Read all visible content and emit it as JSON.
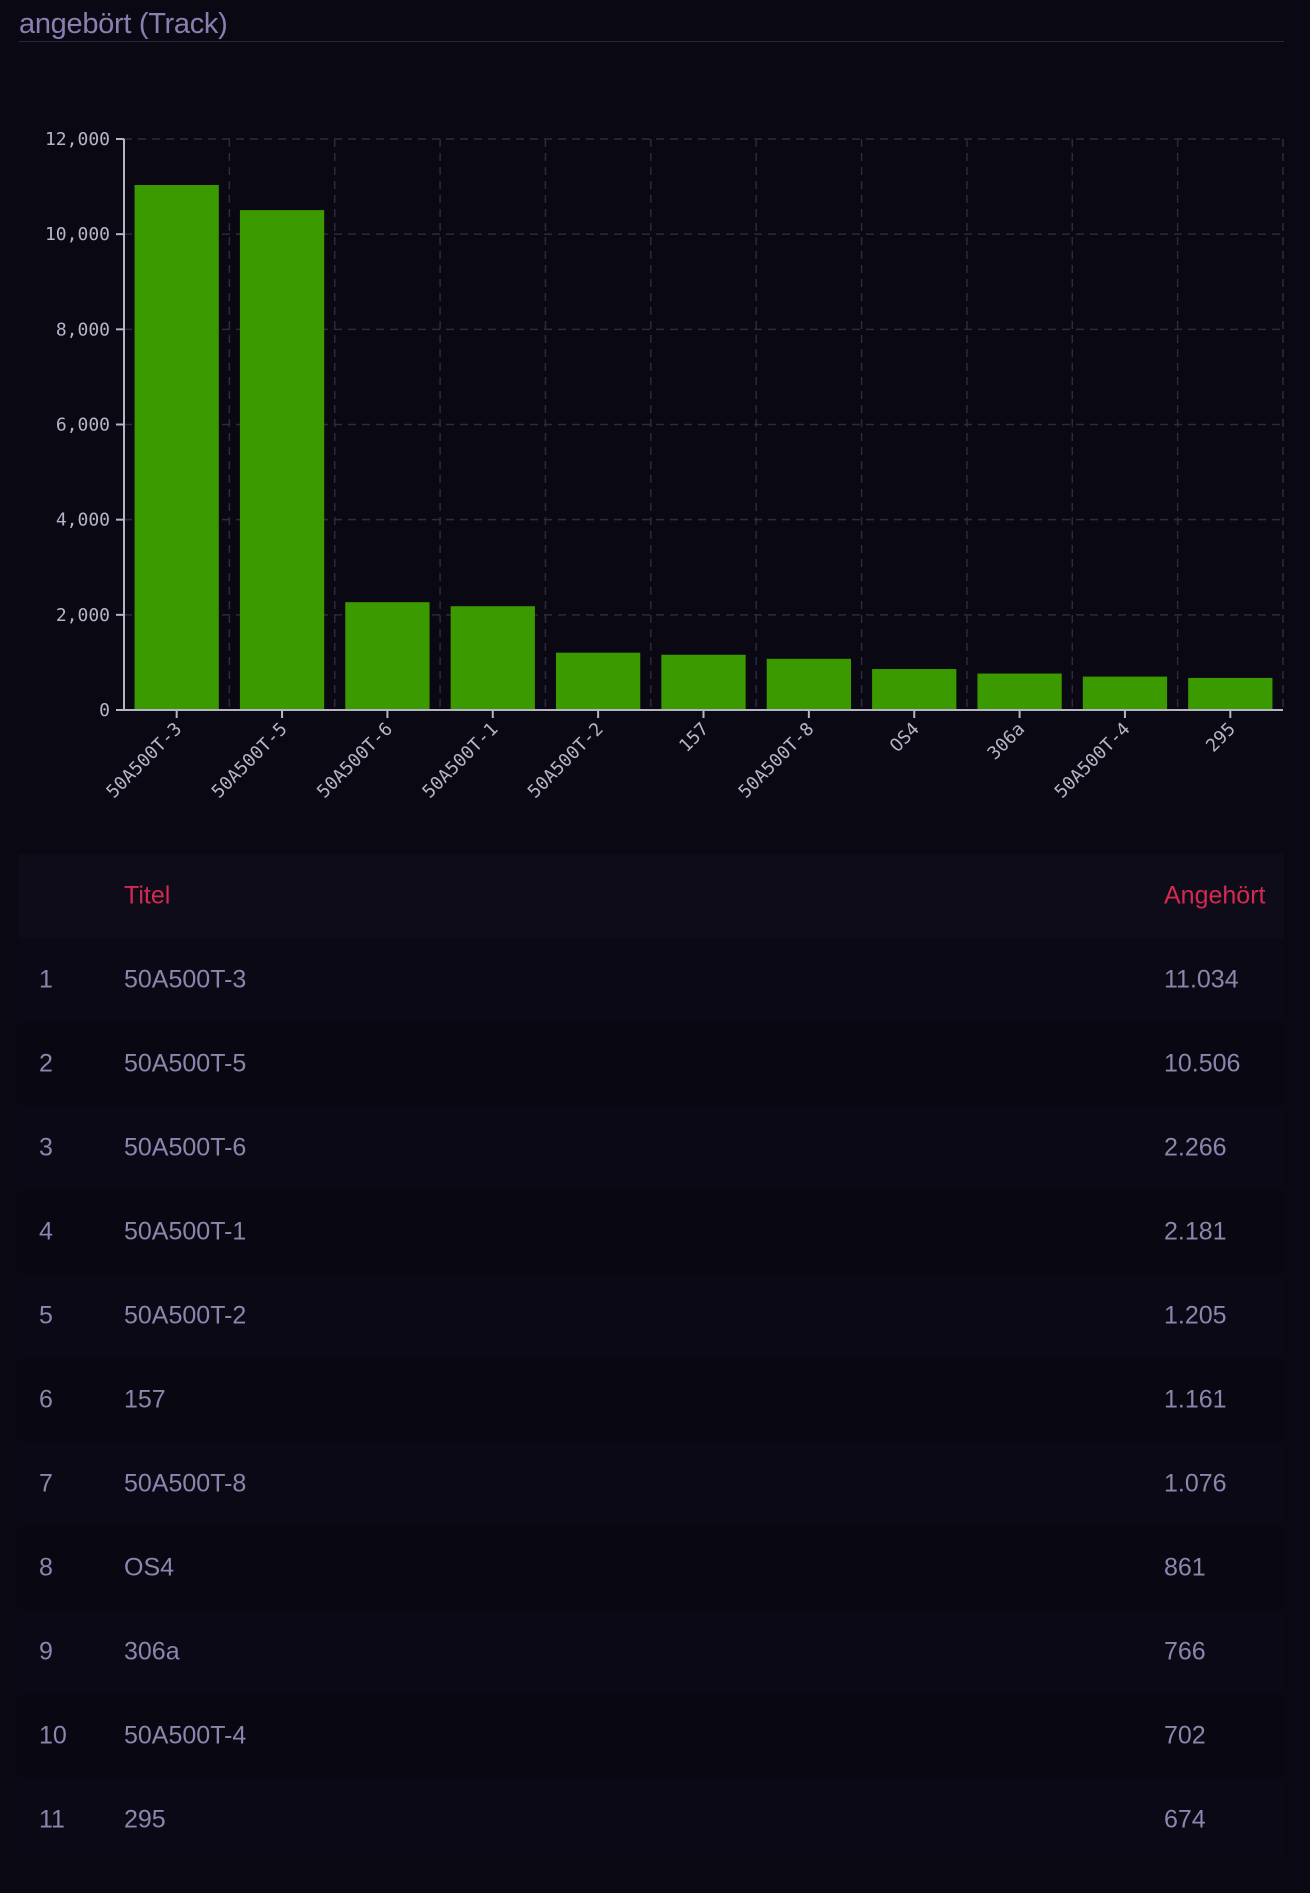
{
  "page": {
    "title": "angebört (Track)"
  },
  "chart_data": {
    "type": "bar",
    "categories": [
      "50A500T-3",
      "50A500T-5",
      "50A500T-6",
      "50A500T-1",
      "50A500T-2",
      "157",
      "50A500T-8",
      "OS4",
      "306a",
      "50A500T-4",
      "295"
    ],
    "values": [
      11034,
      10506,
      2266,
      2181,
      1205,
      1161,
      1076,
      861,
      766,
      702,
      674
    ],
    "ylim": [
      0,
      12000
    ],
    "yticks": [
      0,
      2000,
      4000,
      6000,
      8000,
      10000,
      12000
    ],
    "ytick_labels": [
      "0",
      "2,000",
      "4,000",
      "6,000",
      "8,000",
      "10,000",
      "12,000"
    ],
    "grid": true,
    "bar_color": "#3a9a00",
    "title": "",
    "xlabel": "",
    "ylabel": ""
  },
  "table": {
    "headers": {
      "rank": "",
      "title": "Titel",
      "plays": "Angehört"
    },
    "rows": [
      {
        "rank": "1",
        "title": "50A500T-3",
        "plays": "11.034"
      },
      {
        "rank": "2",
        "title": "50A500T-5",
        "plays": "10.506"
      },
      {
        "rank": "3",
        "title": "50A500T-6",
        "plays": "2.266"
      },
      {
        "rank": "4",
        "title": "50A500T-1",
        "plays": "2.181"
      },
      {
        "rank": "5",
        "title": "50A500T-2",
        "plays": "1.205"
      },
      {
        "rank": "6",
        "title": "157",
        "plays": "1.161"
      },
      {
        "rank": "7",
        "title": "50A500T-8",
        "plays": "1.076"
      },
      {
        "rank": "8",
        "title": "OS4",
        "plays": "861"
      },
      {
        "rank": "9",
        "title": "306a",
        "plays": "766"
      },
      {
        "rank": "10",
        "title": "50A500T-4",
        "plays": "702"
      },
      {
        "rank": "11",
        "title": "295",
        "plays": "674"
      }
    ]
  },
  "colors": {
    "background": "#0a0812",
    "bar": "#3a9a00",
    "header_text": "#d42a52",
    "body_text": "#8d85ad"
  }
}
